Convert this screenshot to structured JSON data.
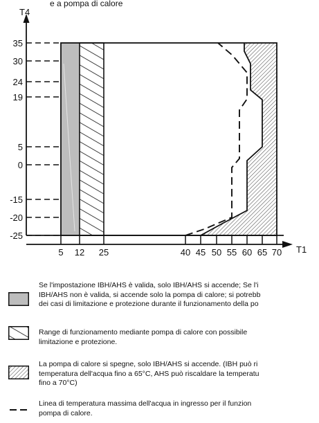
{
  "axes": {
    "x_title": "T1",
    "y_title": "T4",
    "x_ticks": [
      "5",
      "12",
      "25",
      "40",
      "45",
      "50",
      "55",
      "60",
      "65",
      "70"
    ],
    "y_ticks": [
      "35",
      "30",
      "24",
      "19",
      "5",
      "0",
      "-15",
      "-20",
      "-25"
    ]
  },
  "top_caption_fragment": "e a pompa di calore",
  "legend": [
    {
      "id": "ibh-ahs",
      "text": "Se l'impostazione IBH/AHS è valida, solo IBH/AHS si accende; Se l'i\nIBH/AHS non è valida, si accende solo la pompa di calore; si potrebb\ndei casi di limitazione e protezione durante il funzionamento della po",
      "fill": "#bdbdbd"
    },
    {
      "id": "heat-pump",
      "text": "Range di funzionamento mediante pompa di calore con possibile\nlimitazione e protezione.",
      "fill": "diagonal-hatch"
    },
    {
      "id": "heat-pump-off",
      "text": "La pompa di calore si spegne, solo IBH/AHS si accende. (IBH può ri\ntemperatura dell'acqua fino a 65°C, AHS può riscaldare la temperatu\nfino a 70°C)",
      "fill": "dense-backward-hatch"
    },
    {
      "id": "max-water-temp",
      "text": "Linea di temperatura massima dell'acqua in ingresso per il funzion\npompa di calore.",
      "fill": "dashed-line"
    }
  ],
  "colors": {
    "ink": "#111111",
    "grey_region": "#bdbdbd"
  }
}
